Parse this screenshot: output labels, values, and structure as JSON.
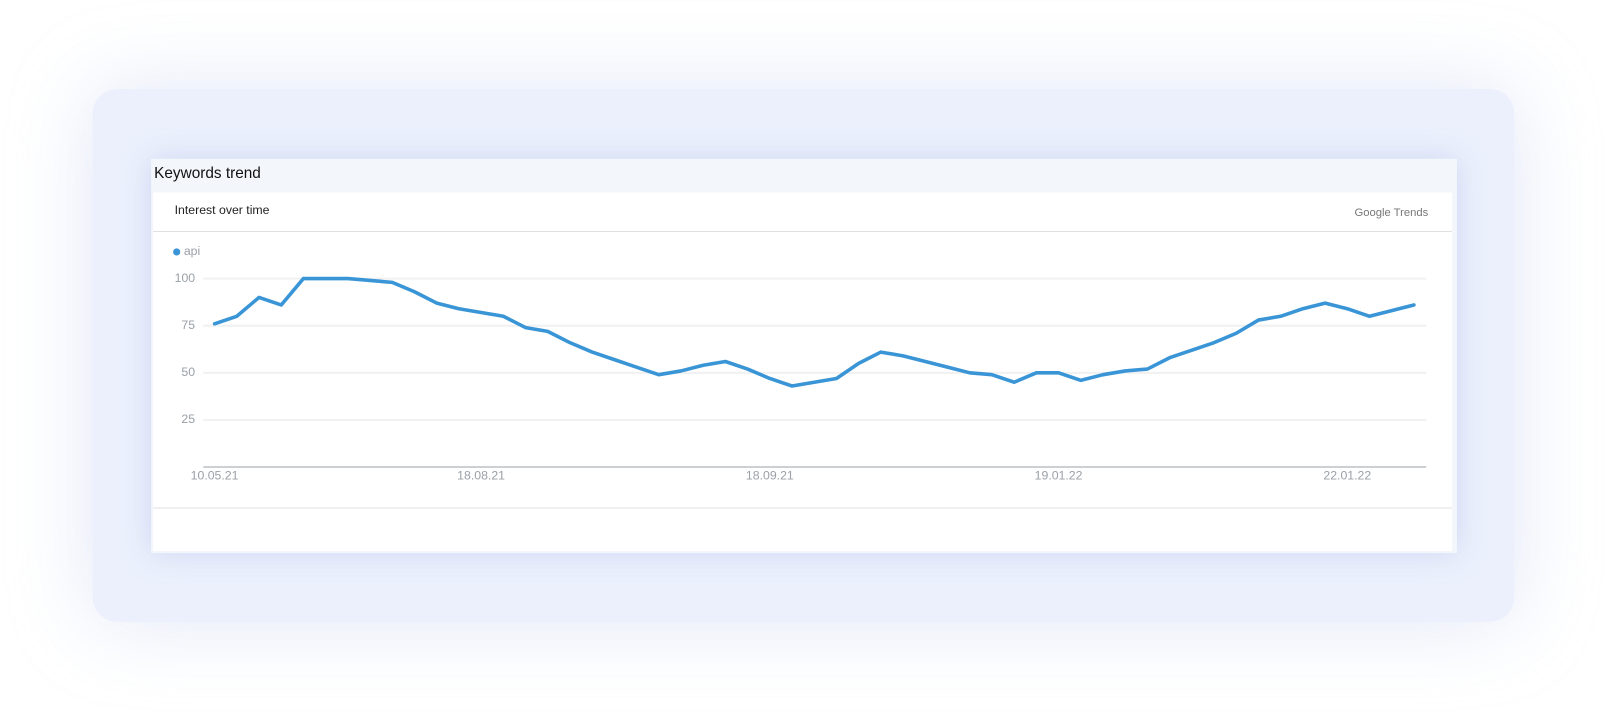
{
  "panel_title": "Keywords trend",
  "chart_data": {
    "type": "line",
    "title": "Interest over time",
    "source": "Google Trends",
    "categories": [
      "10.05.21",
      null,
      null,
      null,
      null,
      null,
      null,
      null,
      null,
      null,
      null,
      null,
      "18.08.21",
      null,
      null,
      null,
      null,
      null,
      null,
      null,
      null,
      null,
      null,
      null,
      null,
      "18.09.21",
      null,
      null,
      null,
      null,
      null,
      null,
      null,
      null,
      null,
      null,
      null,
      null,
      "19.01.22",
      null,
      null,
      null,
      null,
      null,
      null,
      null,
      null,
      null,
      null,
      null,
      null,
      "22.01.22",
      null,
      null,
      null
    ],
    "series": [
      {
        "name": "api",
        "color": "#3a95d6",
        "values": [
          76,
          80,
          90,
          86,
          100,
          100,
          100,
          99,
          98,
          93,
          87,
          84,
          82,
          80,
          74,
          72,
          66,
          61,
          57,
          53,
          49,
          51,
          54,
          56,
          52,
          47,
          43,
          45,
          47,
          55,
          61,
          59,
          56,
          53,
          50,
          49,
          45,
          50,
          50,
          46,
          49,
          51,
          52,
          58,
          62,
          66,
          71,
          78,
          80,
          84,
          87,
          84,
          80,
          83,
          86
        ]
      }
    ],
    "ylim": [
      0,
      100
    ],
    "yticks": [
      25,
      50,
      75,
      100
    ],
    "grid": true
  }
}
